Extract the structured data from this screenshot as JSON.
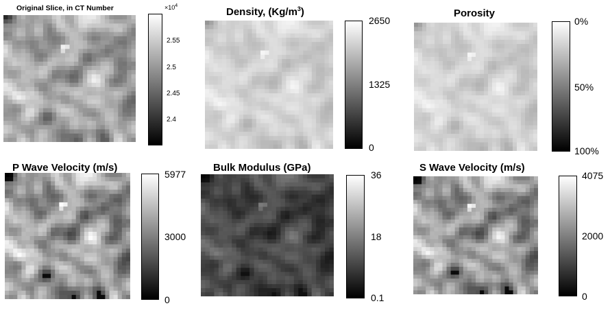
{
  "chart_data": [
    {
      "type": "heatmap",
      "title": "Original Slice, in CT Number",
      "colormap": "gray",
      "scale_exponent": "×10",
      "scale_exponent_power": "4",
      "colorbar_ticks": [
        "2.55",
        "2.5",
        "2.45",
        "2.4"
      ],
      "colorbar_tick_values": [
        2.55,
        2.5,
        2.45,
        2.4
      ],
      "colorbar_range": [
        2.36,
        2.59
      ],
      "tone": "original"
    },
    {
      "type": "heatmap",
      "title": "Density, (Kg/m",
      "title_sup": "3",
      "title_tail": ")",
      "colormap": "gray",
      "colorbar_ticks": [
        "2650",
        "1325",
        "0"
      ],
      "colorbar_tick_values": [
        2650,
        1325,
        0
      ],
      "colorbar_range": [
        0,
        2650
      ],
      "tone": "density"
    },
    {
      "type": "heatmap",
      "title": "Porosity",
      "colormap": "gray",
      "colorbar_ticks": [
        "0%",
        "50%",
        "100%"
      ],
      "colorbar_tick_values": [
        0,
        50,
        100
      ],
      "colorbar_range": [
        0,
        100
      ],
      "colorbar_reversed": true,
      "tone": "porosity"
    },
    {
      "type": "heatmap",
      "title": "P Wave Velocity (m/s)",
      "colormap": "gray",
      "colorbar_ticks": [
        "5977",
        "3000",
        "0"
      ],
      "colorbar_tick_values": [
        5977,
        3000,
        0
      ],
      "colorbar_range": [
        0,
        5977
      ],
      "tone": "pwave"
    },
    {
      "type": "heatmap",
      "title": "Bulk Modulus (GPa)",
      "colormap": "gray",
      "colorbar_ticks": [
        "36",
        "18",
        "0.1"
      ],
      "colorbar_tick_values": [
        36,
        18,
        0.1
      ],
      "colorbar_range": [
        0.1,
        36
      ],
      "tone": "bulk"
    },
    {
      "type": "heatmap",
      "title": "S Wave Velocity (m/s)",
      "colormap": "gray",
      "colorbar_ticks": [
        "4075",
        "2000",
        "0"
      ],
      "colorbar_tick_values": [
        4075,
        2000,
        0
      ],
      "colorbar_range": [
        0,
        4075
      ],
      "tone": "swave"
    }
  ]
}
